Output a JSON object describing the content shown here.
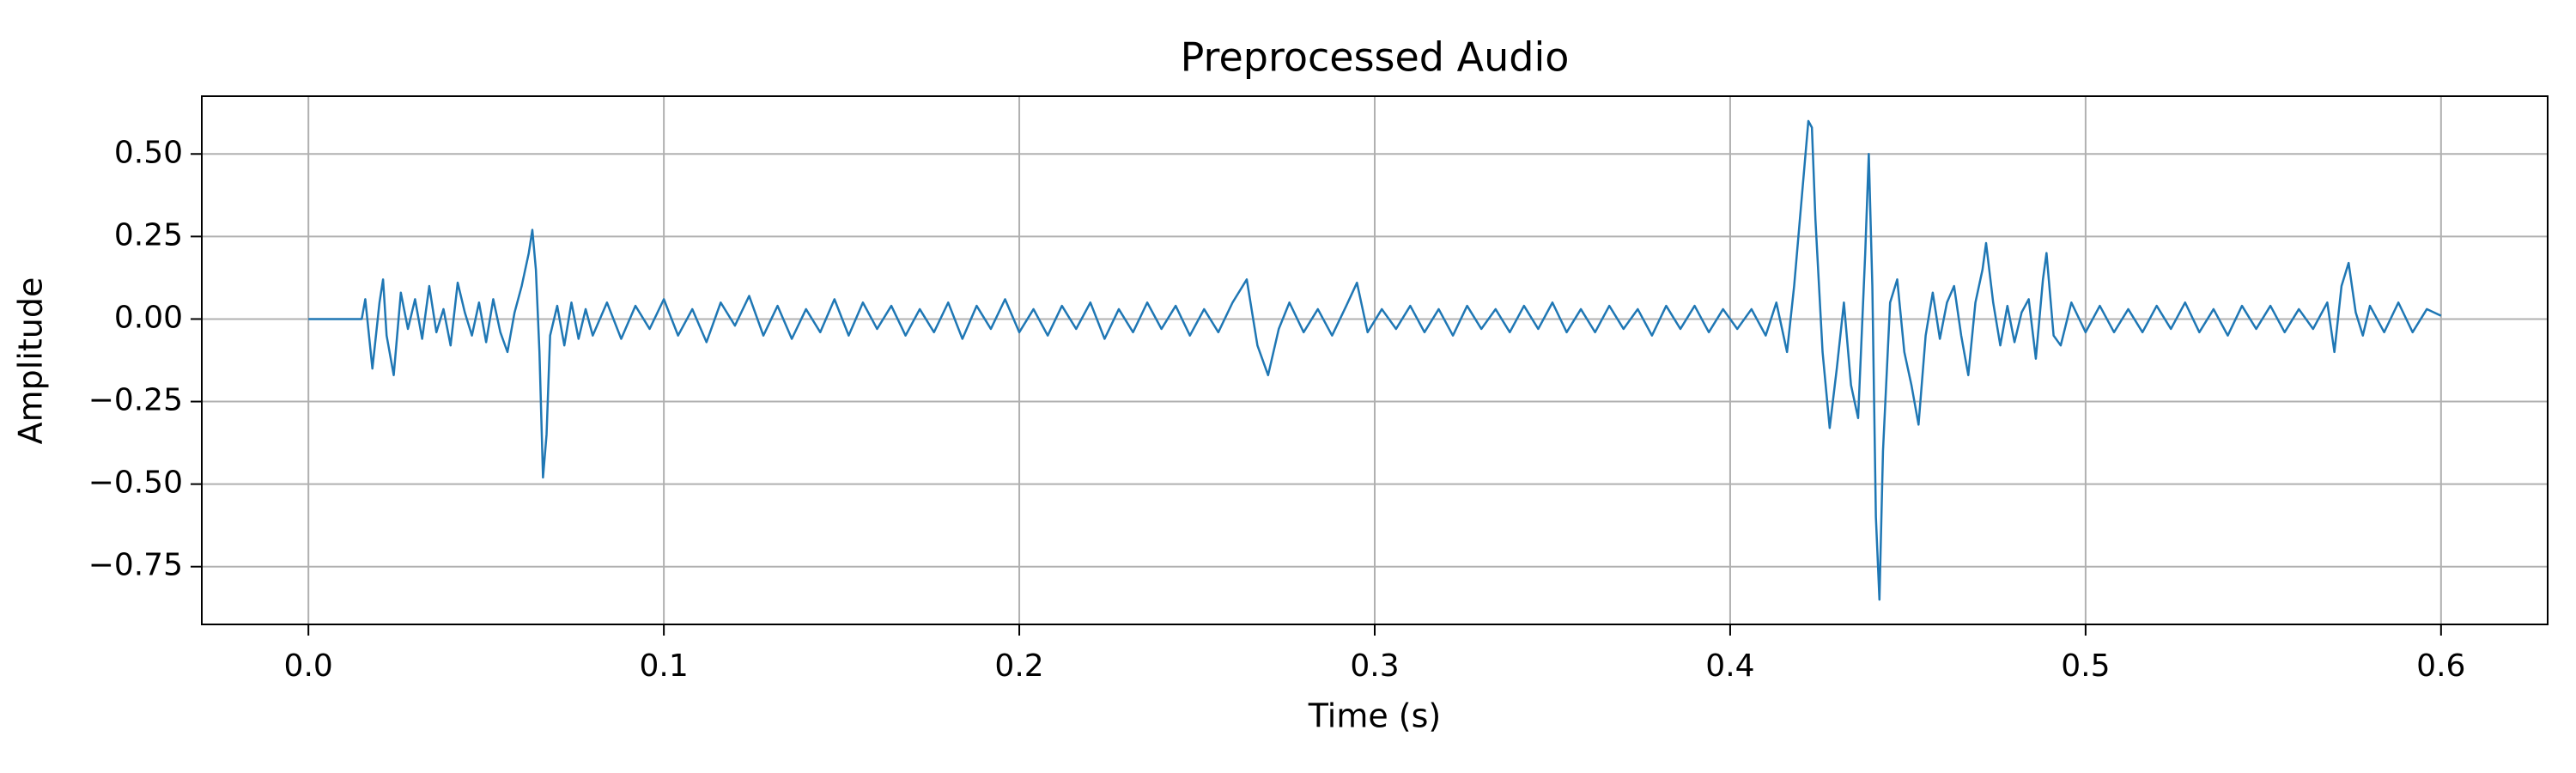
{
  "chart_data": {
    "type": "line",
    "title": "Preprocessed Audio",
    "xlabel": "Time (s)",
    "ylabel": "Amplitude",
    "xlim": [
      -0.03,
      0.63
    ],
    "ylim": [
      -0.925,
      0.675
    ],
    "xticks": [
      {
        "value": 0,
        "label": "0.0"
      },
      0.1,
      0.2,
      0.3,
      0.4,
      0.5,
      0.6
    ],
    "yticks": [
      {
        "value": -0.75,
        "label": "−0.75"
      },
      {
        "value": -0.5,
        "label": "−0.50"
      },
      {
        "value": -0.25,
        "label": "−0.25"
      },
      {
        "value": 0,
        "label": "0.00"
      },
      0.25,
      {
        "value": 0.5,
        "label": "0.50"
      }
    ],
    "grid": true,
    "series": [
      {
        "color": "#1f77b4",
        "x": [
          0,
          0.015,
          0.016,
          0.018,
          0.02,
          0.021,
          0.022,
          0.024,
          0.026,
          0.028,
          0.03,
          0.032,
          0.034,
          0.036,
          0.038,
          0.04,
          0.042,
          0.044,
          0.046,
          0.048,
          0.05,
          0.052,
          0.054,
          0.056,
          0.058,
          0.06,
          0.062,
          0.063,
          0.064,
          0.065,
          0.066,
          0.067,
          0.068,
          0.07,
          0.072,
          0.074,
          0.076,
          0.078,
          0.08,
          0.084,
          0.088,
          0.092,
          0.096,
          0.1,
          0.104,
          0.108,
          0.112,
          0.116,
          0.12,
          0.124,
          0.128,
          0.132,
          0.136,
          0.14,
          0.144,
          0.148,
          0.152,
          0.156,
          0.16,
          0.164,
          0.168,
          0.172,
          0.176,
          0.18,
          0.184,
          0.188,
          0.192,
          0.196,
          0.2,
          0.204,
          0.208,
          0.212,
          0.216,
          0.22,
          0.224,
          0.228,
          0.232,
          0.236,
          0.24,
          0.244,
          0.248,
          0.252,
          0.256,
          0.26,
          0.264,
          0.267,
          0.27,
          0.273,
          0.276,
          0.28,
          0.284,
          0.288,
          0.292,
          0.295,
          0.298,
          0.302,
          0.306,
          0.31,
          0.314,
          0.318,
          0.322,
          0.326,
          0.33,
          0.334,
          0.338,
          0.342,
          0.346,
          0.35,
          0.354,
          0.358,
          0.362,
          0.366,
          0.37,
          0.374,
          0.378,
          0.382,
          0.386,
          0.39,
          0.394,
          0.398,
          0.402,
          0.406,
          0.41,
          0.413,
          0.416,
          0.418,
          0.42,
          0.422,
          0.423,
          0.424,
          0.426,
          0.428,
          0.43,
          0.432,
          0.434,
          0.436,
          0.438,
          0.439,
          0.44,
          0.441,
          0.442,
          0.443,
          0.445,
          0.447,
          0.449,
          0.451,
          0.453,
          0.455,
          0.457,
          0.459,
          0.461,
          0.463,
          0.465,
          0.467,
          0.469,
          0.471,
          0.472,
          0.474,
          0.476,
          0.478,
          0.48,
          0.482,
          0.484,
          0.486,
          0.488,
          0.489,
          0.491,
          0.493,
          0.496,
          0.5,
          0.504,
          0.508,
          0.512,
          0.516,
          0.52,
          0.524,
          0.528,
          0.532,
          0.536,
          0.54,
          0.544,
          0.548,
          0.552,
          0.556,
          0.56,
          0.564,
          0.568,
          0.57,
          0.572,
          0.574,
          0.576,
          0.578,
          0.58,
          0.584,
          0.588,
          0.592,
          0.596,
          0.6
        ],
        "values": [
          0,
          0,
          0.06,
          -0.15,
          0.05,
          0.12,
          -0.05,
          -0.17,
          0.08,
          -0.03,
          0.06,
          -0.06,
          0.1,
          -0.04,
          0.03,
          -0.08,
          0.11,
          0.02,
          -0.05,
          0.05,
          -0.07,
          0.06,
          -0.04,
          -0.1,
          0.02,
          0.1,
          0.2,
          0.27,
          0.15,
          -0.1,
          -0.48,
          -0.35,
          -0.05,
          0.04,
          -0.08,
          0.05,
          -0.06,
          0.03,
          -0.05,
          0.05,
          -0.06,
          0.04,
          -0.03,
          0.06,
          -0.05,
          0.03,
          -0.07,
          0.05,
          -0.02,
          0.07,
          -0.05,
          0.04,
          -0.06,
          0.03,
          -0.04,
          0.06,
          -0.05,
          0.05,
          -0.03,
          0.04,
          -0.05,
          0.03,
          -0.04,
          0.05,
          -0.06,
          0.04,
          -0.03,
          0.06,
          -0.04,
          0.03,
          -0.05,
          0.04,
          -0.03,
          0.05,
          -0.06,
          0.03,
          -0.04,
          0.05,
          -0.03,
          0.04,
          -0.05,
          0.03,
          -0.04,
          0.05,
          0.12,
          -0.08,
          -0.17,
          -0.03,
          0.05,
          -0.04,
          0.03,
          -0.05,
          0.04,
          0.11,
          -0.04,
          0.03,
          -0.03,
          0.04,
          -0.04,
          0.03,
          -0.05,
          0.04,
          -0.03,
          0.03,
          -0.04,
          0.04,
          -0.03,
          0.05,
          -0.04,
          0.03,
          -0.04,
          0.04,
          -0.03,
          0.03,
          -0.05,
          0.04,
          -0.03,
          0.04,
          -0.04,
          0.03,
          -0.03,
          0.03,
          -0.05,
          0.05,
          -0.1,
          0.1,
          0.35,
          0.6,
          0.58,
          0.3,
          -0.1,
          -0.33,
          -0.15,
          0.05,
          -0.2,
          -0.3,
          0.2,
          0.5,
          0.1,
          -0.6,
          -0.85,
          -0.4,
          0.05,
          0.12,
          -0.1,
          -0.2,
          -0.32,
          -0.05,
          0.08,
          -0.06,
          0.05,
          0.1,
          -0.05,
          -0.17,
          0.05,
          0.15,
          0.23,
          0.05,
          -0.08,
          0.04,
          -0.07,
          0.02,
          0.06,
          -0.12,
          0.12,
          0.2,
          -0.05,
          -0.08,
          0.05,
          -0.04,
          0.04,
          -0.04,
          0.03,
          -0.04,
          0.04,
          -0.03,
          0.05,
          -0.04,
          0.03,
          -0.05,
          0.04,
          -0.03,
          0.04,
          -0.04,
          0.03,
          -0.03,
          0.05,
          -0.1,
          0.1,
          0.17,
          0.02,
          -0.05,
          0.04,
          -0.04,
          0.05,
          -0.04,
          0.03,
          0.01
        ]
      }
    ]
  }
}
